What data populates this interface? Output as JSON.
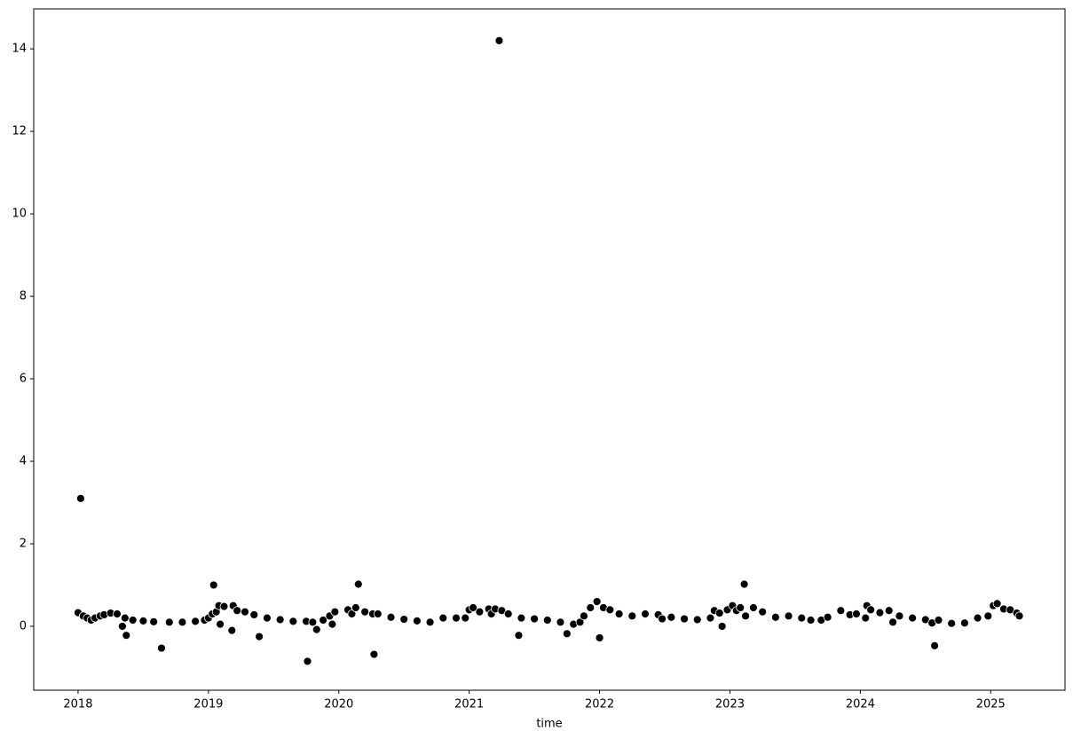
{
  "chart_data": {
    "type": "scatter",
    "x_label": "time",
    "color": "#000000",
    "x": [
      2018.0,
      2018.02,
      2018.04,
      2018.07,
      2018.1,
      2018.13,
      2018.17,
      2018.2,
      2018.25,
      2018.3,
      2018.34,
      2018.37,
      2018.36,
      2018.42,
      2018.5,
      2018.58,
      2018.64,
      2018.7,
      2018.8,
      2018.9,
      2018.97,
      2019.0,
      2019.03,
      2019.04,
      2019.06,
      2019.08,
      2019.09,
      2019.12,
      2019.18,
      2019.19,
      2019.22,
      2019.28,
      2019.35,
      2019.39,
      2019.45,
      2019.55,
      2019.65,
      2019.75,
      2019.76,
      2019.8,
      2019.83,
      2019.88,
      2019.93,
      2019.95,
      2019.97,
      2020.07,
      2020.1,
      2020.13,
      2020.15,
      2020.2,
      2020.26,
      2020.27,
      2020.3,
      2020.4,
      2020.5,
      2020.6,
      2020.7,
      2020.8,
      2020.9,
      2020.97,
      2021.0,
      2021.03,
      2021.08,
      2021.15,
      2021.17,
      2021.2,
      2021.23,
      2021.25,
      2021.3,
      2021.38,
      2021.4,
      2021.5,
      2021.6,
      2021.7,
      2021.75,
      2021.8,
      2021.85,
      2021.88,
      2021.93,
      2021.98,
      2022.0,
      2022.03,
      2022.08,
      2022.15,
      2022.25,
      2022.35,
      2022.45,
      2022.48,
      2022.55,
      2022.65,
      2022.75,
      2022.85,
      2022.88,
      2022.92,
      2022.94,
      2022.98,
      2023.02,
      2023.05,
      2023.08,
      2023.11,
      2023.12,
      2023.18,
      2023.25,
      2023.35,
      2023.45,
      2023.55,
      2023.62,
      2023.7,
      2023.75,
      2023.85,
      2023.92,
      2023.97,
      2024.04,
      2024.05,
      2024.08,
      2024.15,
      2024.22,
      2024.25,
      2024.3,
      2024.4,
      2024.5,
      2024.55,
      2024.57,
      2024.6,
      2024.7,
      2024.8,
      2024.9,
      2024.98,
      2025.02,
      2025.05,
      2025.1,
      2025.15,
      2025.2,
      2025.22
    ],
    "values": [
      0.33,
      3.1,
      0.25,
      0.2,
      0.15,
      0.2,
      0.25,
      0.28,
      0.32,
      0.3,
      0.0,
      -0.22,
      0.2,
      0.15,
      0.13,
      0.11,
      -0.53,
      0.1,
      0.1,
      0.12,
      0.15,
      0.2,
      0.3,
      1.0,
      0.35,
      0.5,
      0.05,
      0.48,
      -0.1,
      0.5,
      0.38,
      0.35,
      0.28,
      -0.25,
      0.2,
      0.16,
      0.12,
      0.12,
      -0.85,
      0.1,
      -0.08,
      0.15,
      0.25,
      0.05,
      0.35,
      0.4,
      0.3,
      0.45,
      1.02,
      0.35,
      0.3,
      -0.68,
      0.3,
      0.22,
      0.17,
      0.13,
      0.1,
      0.2,
      0.2,
      0.2,
      0.4,
      0.45,
      0.35,
      0.42,
      0.3,
      0.42,
      14.2,
      0.38,
      0.3,
      -0.22,
      0.2,
      0.18,
      0.15,
      0.1,
      -0.18,
      0.05,
      0.1,
      0.25,
      0.45,
      0.6,
      -0.28,
      0.45,
      0.4,
      0.3,
      0.25,
      0.3,
      0.28,
      0.18,
      0.22,
      0.18,
      0.16,
      0.2,
      0.38,
      0.32,
      0.0,
      0.4,
      0.5,
      0.38,
      0.45,
      1.02,
      0.25,
      0.45,
      0.35,
      0.22,
      0.25,
      0.2,
      0.15,
      0.15,
      0.22,
      0.38,
      0.28,
      0.3,
      0.2,
      0.5,
      0.4,
      0.33,
      0.38,
      0.1,
      0.25,
      0.2,
      0.16,
      0.08,
      -0.47,
      0.15,
      0.07,
      0.08,
      0.2,
      0.25,
      0.5,
      0.55,
      0.42,
      0.4,
      0.32,
      0.25
    ],
    "xlim": [
      2017.66,
      2025.57
    ],
    "xticks": [
      2018,
      2019,
      2020,
      2021,
      2022,
      2023,
      2024,
      2025
    ],
    "ylim": [
      -1.55,
      14.97
    ],
    "yticks": [
      0,
      2,
      4,
      6,
      8,
      10,
      12,
      14
    ]
  }
}
